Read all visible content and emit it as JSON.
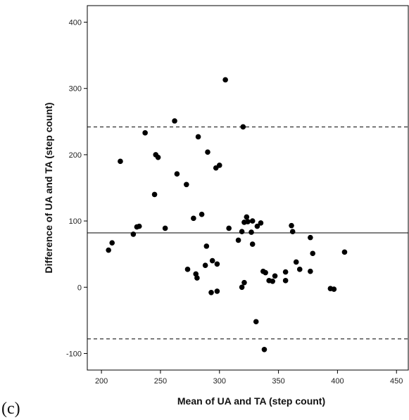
{
  "panel_label": "(c)",
  "chart_data": {
    "type": "scatter",
    "title": "",
    "xlabel": "Mean of UA and TA (step count)",
    "ylabel": "Difference of UA and TA (step count)",
    "xlim": [
      188,
      460
    ],
    "ylim": [
      -125,
      425
    ],
    "xticks": [
      200,
      250,
      300,
      350,
      400,
      450
    ],
    "yticks": [
      -100,
      0,
      100,
      200,
      300,
      400
    ],
    "grid": false,
    "legend": "none",
    "point_color": "#000000",
    "reference_lines": [
      {
        "name": "mean difference",
        "y": 82,
        "style": "solid"
      },
      {
        "name": "upper limit of agreement",
        "y": 242,
        "style": "dashed"
      },
      {
        "name": "lower limit of agreement",
        "y": -78,
        "style": "dashed"
      }
    ],
    "points": [
      {
        "x": 206,
        "y": 56
      },
      {
        "x": 209,
        "y": 67
      },
      {
        "x": 216,
        "y": 190
      },
      {
        "x": 227,
        "y": 80
      },
      {
        "x": 230,
        "y": 91
      },
      {
        "x": 232,
        "y": 92
      },
      {
        "x": 237,
        "y": 233
      },
      {
        "x": 245,
        "y": 140
      },
      {
        "x": 246,
        "y": 200
      },
      {
        "x": 248,
        "y": 196
      },
      {
        "x": 254,
        "y": 89
      },
      {
        "x": 262,
        "y": 251
      },
      {
        "x": 264,
        "y": 171
      },
      {
        "x": 272,
        "y": 155
      },
      {
        "x": 273,
        "y": 27
      },
      {
        "x": 278,
        "y": 104
      },
      {
        "x": 280,
        "y": 20
      },
      {
        "x": 281,
        "y": 14
      },
      {
        "x": 282,
        "y": 227
      },
      {
        "x": 285,
        "y": 110
      },
      {
        "x": 288,
        "y": 33
      },
      {
        "x": 289,
        "y": 62
      },
      {
        "x": 290,
        "y": 204
      },
      {
        "x": 293,
        "y": -8
      },
      {
        "x": 294,
        "y": 40
      },
      {
        "x": 297,
        "y": 180
      },
      {
        "x": 298,
        "y": -6
      },
      {
        "x": 298,
        "y": 35
      },
      {
        "x": 300,
        "y": 184
      },
      {
        "x": 305,
        "y": 313
      },
      {
        "x": 308,
        "y": 89
      },
      {
        "x": 316,
        "y": 71
      },
      {
        "x": 319,
        "y": 84
      },
      {
        "x": 319,
        "y": 0
      },
      {
        "x": 320,
        "y": 242
      },
      {
        "x": 321,
        "y": 98
      },
      {
        "x": 321,
        "y": 7
      },
      {
        "x": 323,
        "y": 106
      },
      {
        "x": 324,
        "y": 99
      },
      {
        "x": 327,
        "y": 83
      },
      {
        "x": 328,
        "y": 100
      },
      {
        "x": 328,
        "y": 65
      },
      {
        "x": 331,
        "y": -52
      },
      {
        "x": 332,
        "y": 92
      },
      {
        "x": 335,
        "y": 97
      },
      {
        "x": 337,
        "y": 24
      },
      {
        "x": 338,
        "y": -94
      },
      {
        "x": 339,
        "y": 22
      },
      {
        "x": 342,
        "y": 10
      },
      {
        "x": 345,
        "y": 9
      },
      {
        "x": 347,
        "y": 17
      },
      {
        "x": 356,
        "y": 23
      },
      {
        "x": 356,
        "y": 10
      },
      {
        "x": 361,
        "y": 93
      },
      {
        "x": 362,
        "y": 84
      },
      {
        "x": 365,
        "y": 38
      },
      {
        "x": 368,
        "y": 27
      },
      {
        "x": 377,
        "y": 75
      },
      {
        "x": 377,
        "y": 24
      },
      {
        "x": 379,
        "y": 51
      },
      {
        "x": 394,
        "y": -2
      },
      {
        "x": 397,
        "y": -3
      },
      {
        "x": 406,
        "y": 53
      }
    ]
  }
}
